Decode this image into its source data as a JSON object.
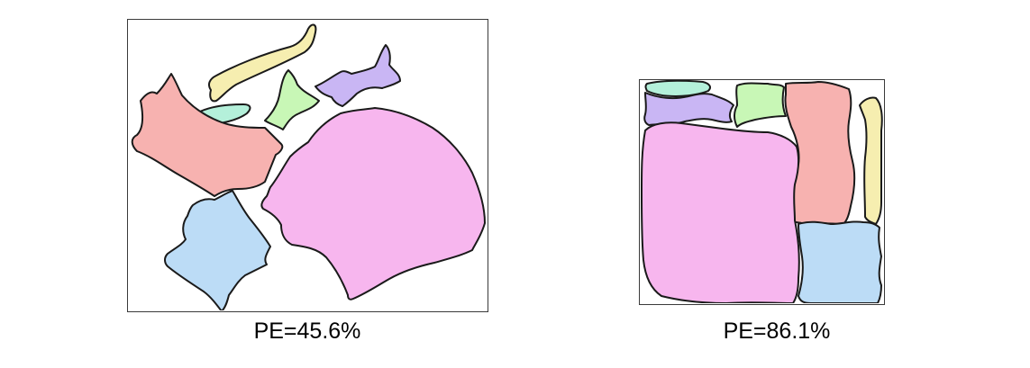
{
  "colors": {
    "pink": "#f7b6ee",
    "red": "#f7b2b0",
    "blue": "#bcdcf6",
    "green": "#c8f7b6",
    "teal": "#b4f0da",
    "purple": "#c9b6f4",
    "yellow": "#f6eeb0",
    "border": "#3a3a3a"
  },
  "panels": [
    {
      "caption": "PE=45.6%"
    },
    {
      "caption": "PE=86.1%"
    }
  ]
}
